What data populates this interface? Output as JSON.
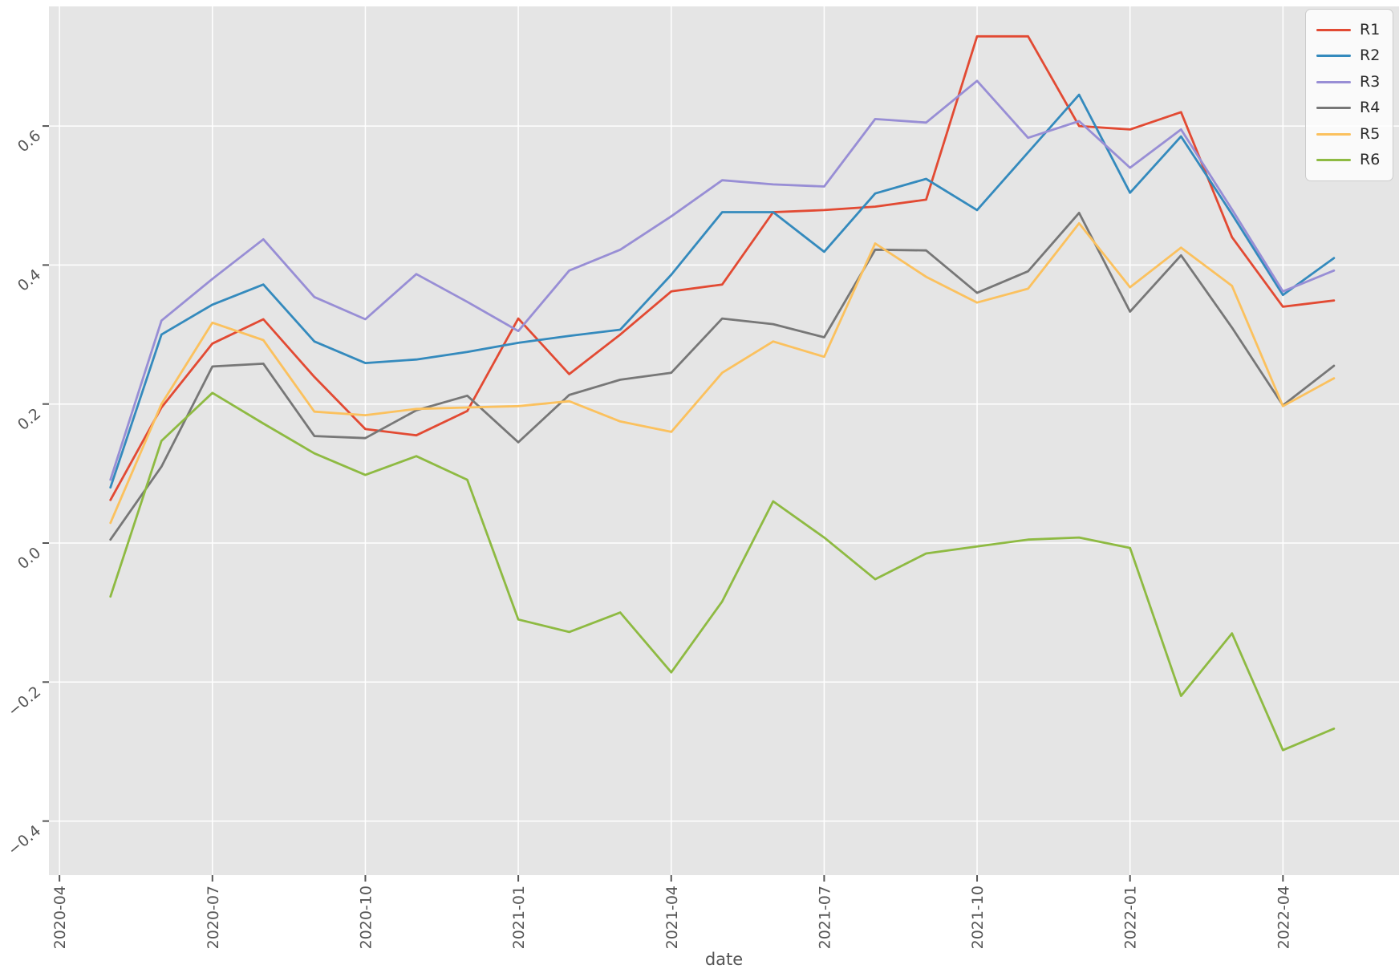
{
  "figure": {
    "background": "#ffffff",
    "axes_background": "#e5e5e5",
    "gridline_color": "#ffffff",
    "tick_color": "#555555",
    "tick_label_color": "#555555",
    "axis_label_color": "#555555"
  },
  "chart_data": {
    "type": "line",
    "title": "",
    "xlabel": "date",
    "ylabel": "",
    "grid": true,
    "legend_position": "upper right",
    "x": [
      "2020-05",
      "2020-06",
      "2020-07",
      "2020-08",
      "2020-09",
      "2020-10",
      "2020-11",
      "2020-12",
      "2021-01",
      "2021-02",
      "2021-03",
      "2021-04",
      "2021-05",
      "2021-06",
      "2021-07",
      "2021-08",
      "2021-09",
      "2021-10",
      "2021-11",
      "2021-12",
      "2022-01",
      "2022-02",
      "2022-03",
      "2022-04",
      "2022-05"
    ],
    "x_tick_labels": [
      "2020-04",
      "2020-07",
      "2020-10",
      "2021-01",
      "2021-04",
      "2021-07",
      "2021-10",
      "2022-01",
      "2022-04"
    ],
    "y_tick_labels": [
      "0.6",
      "0.4",
      "0.2",
      "0.0",
      "−0.2",
      "−0.4"
    ],
    "y_tick_values": [
      0.6,
      0.4,
      0.2,
      0.0,
      -0.2,
      -0.4
    ],
    "ylim": [
      -0.478,
      0.772
    ],
    "series": [
      {
        "name": "R1",
        "color": "#E24A33",
        "values": [
          0.062,
          0.195,
          0.287,
          0.322,
          0.239,
          0.164,
          0.155,
          0.19,
          0.323,
          0.243,
          0.3,
          0.362,
          0.372,
          0.476,
          0.479,
          0.484,
          0.494,
          0.729,
          0.729,
          0.6,
          0.595,
          0.62,
          0.44,
          0.34,
          0.349
        ]
      },
      {
        "name": "R2",
        "color": "#348ABD",
        "values": [
          0.08,
          0.3,
          0.343,
          0.372,
          0.29,
          0.259,
          0.264,
          0.275,
          0.288,
          0.298,
          0.307,
          0.386,
          0.476,
          0.476,
          0.419,
          0.503,
          0.524,
          0.479,
          0.562,
          0.645,
          0.504,
          0.585,
          0.473,
          0.357,
          0.41
        ]
      },
      {
        "name": "R3",
        "color": "#988ED5",
        "values": [
          0.091,
          0.32,
          0.38,
          0.437,
          0.354,
          0.322,
          0.387,
          0.347,
          0.305,
          0.392,
          0.422,
          0.47,
          0.522,
          0.516,
          0.513,
          0.61,
          0.605,
          0.665,
          0.583,
          0.607,
          0.54,
          0.595,
          0.48,
          0.362,
          0.392
        ]
      },
      {
        "name": "R4",
        "color": "#777777",
        "values": [
          0.005,
          0.11,
          0.254,
          0.258,
          0.154,
          0.151,
          0.191,
          0.212,
          0.145,
          0.213,
          0.235,
          0.245,
          0.323,
          0.315,
          0.296,
          0.422,
          0.421,
          0.36,
          0.391,
          0.475,
          0.333,
          0.414,
          0.31,
          0.198,
          0.255
        ]
      },
      {
        "name": "R5",
        "color": "#FBC15E",
        "values": [
          0.029,
          0.2,
          0.317,
          0.292,
          0.189,
          0.184,
          0.193,
          0.195,
          0.197,
          0.204,
          0.175,
          0.16,
          0.245,
          0.29,
          0.268,
          0.431,
          0.383,
          0.346,
          0.366,
          0.46,
          0.368,
          0.425,
          0.37,
          0.197,
          0.237
        ]
      },
      {
        "name": "R6",
        "color": "#8EBA42",
        "values": [
          -0.077,
          0.147,
          0.216,
          0.172,
          0.129,
          0.098,
          0.125,
          0.091,
          -0.11,
          -0.128,
          -0.1,
          -0.186,
          -0.084,
          0.06,
          0.008,
          -0.052,
          -0.015,
          -0.005,
          0.005,
          0.008,
          -0.007,
          -0.22,
          -0.13,
          -0.298,
          -0.267
        ]
      }
    ]
  }
}
